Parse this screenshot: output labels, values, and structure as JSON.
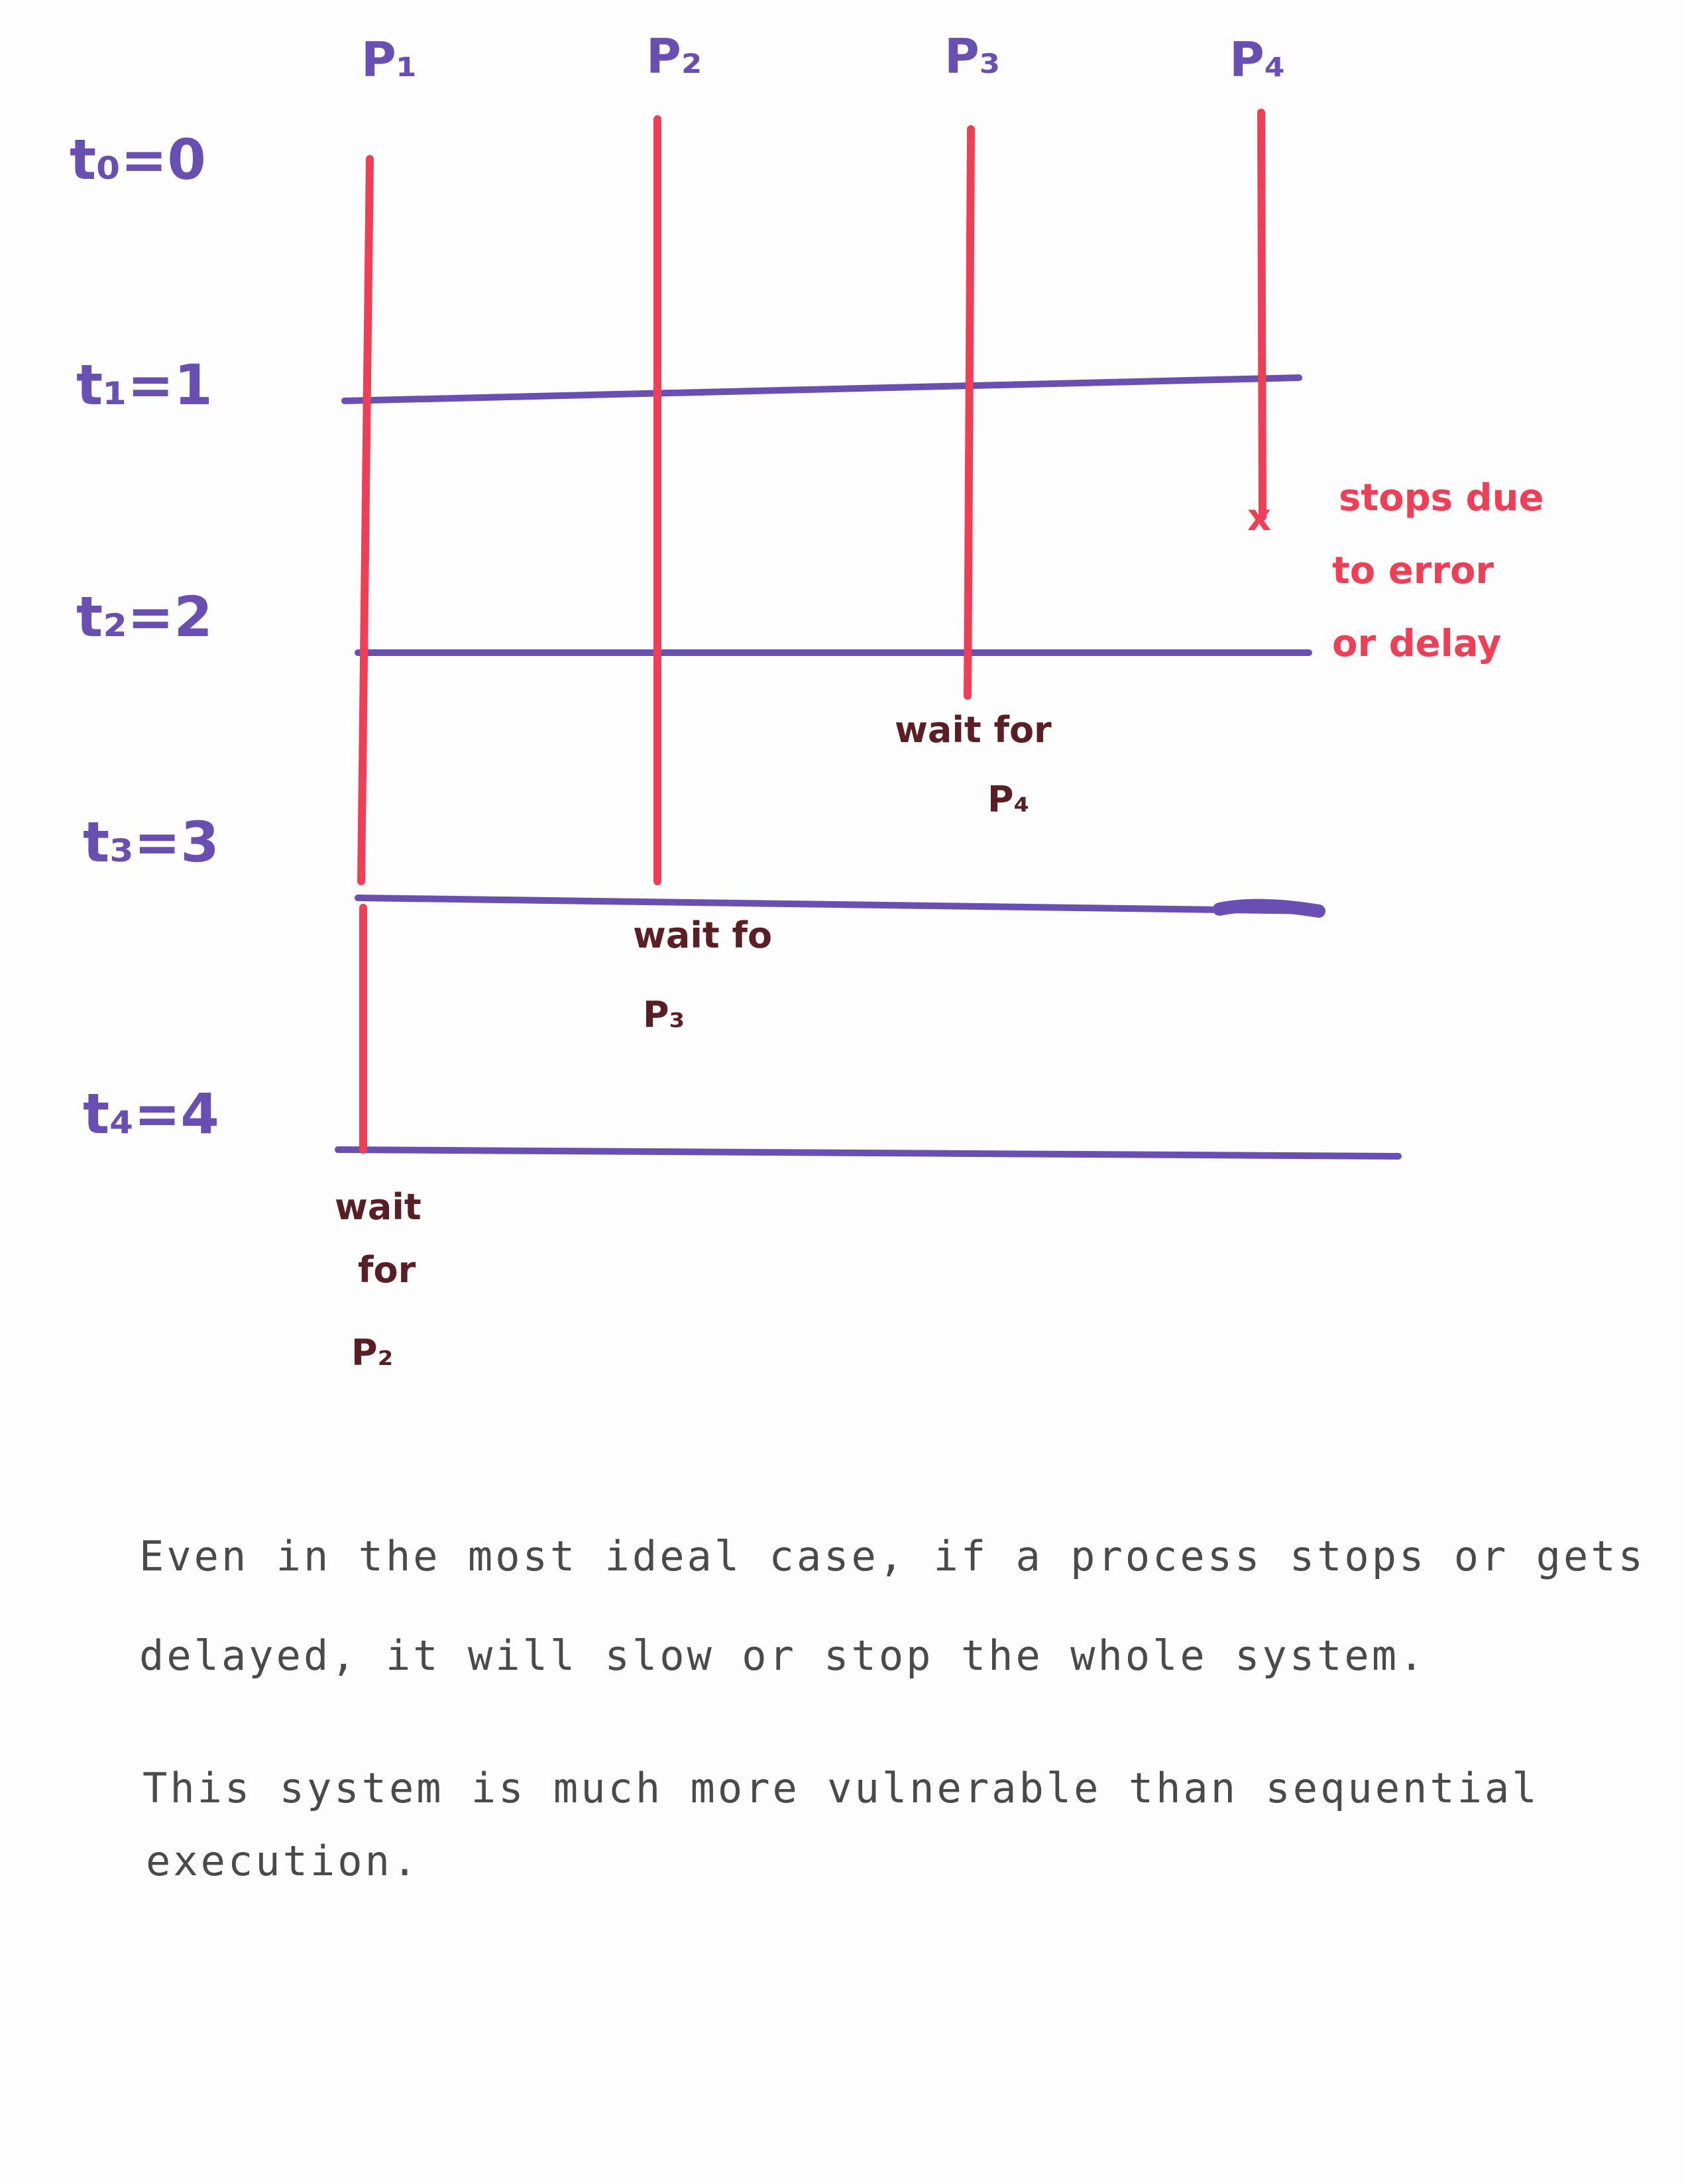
{
  "colors": {
    "process_line": "#ee3f56",
    "time_line": "#6a4fb3",
    "wait_text": "#5a1f24",
    "note_text": "#4a4a4a"
  },
  "processes": [
    {
      "label": "P₁"
    },
    {
      "label": "P₂"
    },
    {
      "label": "P₃"
    },
    {
      "label": "P₄"
    }
  ],
  "time_labels": [
    {
      "label": "t₀=0"
    },
    {
      "label": "t₁=1"
    },
    {
      "label": "t₂=2"
    },
    {
      "label": "t₃=3"
    },
    {
      "label": "t₄=4"
    }
  ],
  "wait_notes": {
    "p1": [
      "wait",
      "for",
      "P₂"
    ],
    "p2": [
      "wait fo",
      "P₃"
    ],
    "p3": [
      "wait for",
      "P₄"
    ]
  },
  "error_note": [
    "stops due",
    "to error",
    "or delay"
  ],
  "error_marker": "x",
  "notes": [
    "Even in the most ideal case, if a process stops or gets",
    "delayed, it will slow or stop the whole system.",
    "This system is much more vulnerable than sequential",
    "execution."
  ]
}
